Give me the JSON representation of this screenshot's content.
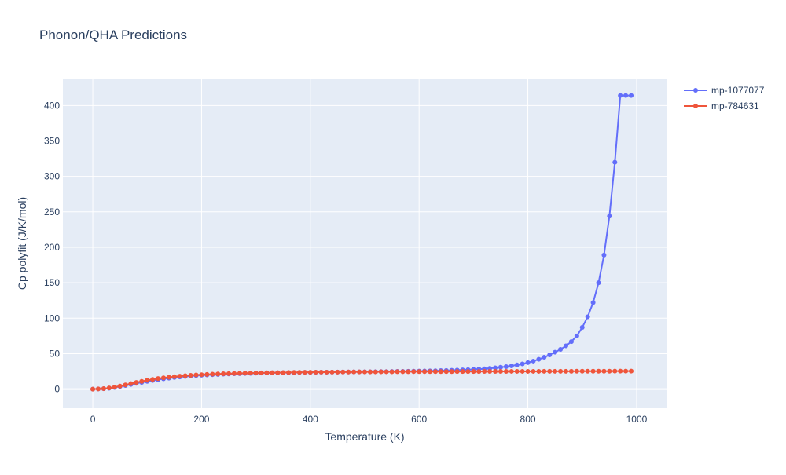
{
  "title": "Phonon/QHA Predictions",
  "colors": {
    "plot_bg": "#e5ecf6",
    "grid": "#ffffff",
    "text": "#2a3f5f",
    "series_1": "#636efa",
    "series_2": "#ef553b"
  },
  "chart_data": {
    "type": "line",
    "title": "Phonon/QHA Predictions",
    "xlabel": "Temperature (K)",
    "ylabel": "Cp polyfit (J/K/mol)",
    "xlim": [
      -55,
      1055
    ],
    "ylim": [
      -27,
      438
    ],
    "xticks": [
      0,
      200,
      400,
      600,
      800,
      1000
    ],
    "xtick_labels": [
      "0",
      "200",
      "400",
      "600",
      "800",
      "1000"
    ],
    "yticks": [
      0,
      50,
      100,
      150,
      200,
      250,
      300,
      350,
      400
    ],
    "ytick_labels": [
      "0",
      "50",
      "100",
      "150",
      "200",
      "250",
      "300",
      "350",
      "400"
    ],
    "grid": true,
    "legend_position": "top-right",
    "x": [
      0,
      10,
      20,
      30,
      40,
      50,
      60,
      70,
      80,
      90,
      100,
      110,
      120,
      130,
      140,
      150,
      160,
      170,
      180,
      190,
      200,
      210,
      220,
      230,
      240,
      250,
      260,
      270,
      280,
      290,
      300,
      310,
      320,
      330,
      340,
      350,
      360,
      370,
      380,
      390,
      400,
      410,
      420,
      430,
      440,
      450,
      460,
      470,
      480,
      490,
      500,
      510,
      520,
      530,
      540,
      550,
      560,
      570,
      580,
      590,
      600,
      610,
      620,
      630,
      640,
      650,
      660,
      670,
      680,
      690,
      700,
      710,
      720,
      730,
      740,
      750,
      760,
      770,
      780,
      790,
      800,
      810,
      820,
      830,
      840,
      850,
      860,
      870,
      880,
      890,
      900,
      910,
      920,
      930,
      940,
      950,
      960,
      970,
      980,
      990
    ],
    "series": [
      {
        "name": "mp-1077077",
        "values": [
          0,
          0.2,
          0.6,
          1.3,
          2.4,
          3.7,
          5.1,
          6.6,
          8.1,
          9.5,
          10.9,
          12.2,
          13.4,
          14.5,
          15.5,
          16.4,
          17.2,
          17.9,
          18.5,
          19.1,
          19.6,
          20.0,
          20.4,
          20.8,
          21.1,
          21.4,
          21.7,
          21.9,
          22.1,
          22.3,
          22.5,
          22.7,
          22.8,
          23.0,
          23.1,
          23.2,
          23.3,
          23.4,
          23.5,
          23.6,
          23.7,
          23.8,
          23.9,
          23.9,
          24.0,
          24.1,
          24.2,
          24.2,
          24.3,
          24.4,
          24.5,
          24.5,
          24.6,
          24.7,
          24.8,
          24.9,
          25.0,
          25.1,
          25.2,
          25.3,
          25.4,
          25.6,
          25.7,
          25.9,
          26.1,
          26.3,
          26.5,
          26.8,
          27.1,
          27.4,
          27.8,
          28.2,
          28.7,
          29.3,
          30.0,
          30.8,
          31.7,
          32.8,
          34.1,
          35.6,
          37.4,
          39.5,
          42.0,
          44.9,
          48.3,
          52.0,
          56.0,
          61.0,
          67.0,
          75.0,
          87.0,
          102.0,
          122.0,
          150.0,
          189.0,
          244.0,
          320.0,
          414.0,
          414.0,
          414.0
        ],
        "color": "#636efa"
      },
      {
        "name": "mp-784631",
        "values": [
          0,
          0.2,
          0.7,
          1.6,
          2.8,
          4.3,
          6.0,
          7.7,
          9.4,
          10.9,
          12.4,
          13.7,
          14.9,
          15.9,
          16.8,
          17.6,
          18.3,
          18.9,
          19.5,
          20.0,
          20.4,
          20.8,
          21.1,
          21.4,
          21.7,
          21.9,
          22.1,
          22.3,
          22.5,
          22.7,
          22.8,
          23.0,
          23.1,
          23.2,
          23.3,
          23.4,
          23.5,
          23.6,
          23.7,
          23.8,
          23.8,
          23.9,
          24.0,
          24.0,
          24.1,
          24.1,
          24.2,
          24.2,
          24.3,
          24.3,
          24.4,
          24.4,
          24.4,
          24.5,
          24.5,
          24.5,
          24.6,
          24.6,
          24.6,
          24.7,
          24.7,
          24.7,
          24.7,
          24.8,
          24.8,
          24.8,
          24.8,
          24.9,
          24.9,
          24.9,
          24.9,
          24.9,
          25.0,
          25.0,
          25.0,
          25.0,
          25.0,
          25.1,
          25.1,
          25.1,
          25.1,
          25.1,
          25.1,
          25.2,
          25.2,
          25.2,
          25.2,
          25.2,
          25.2,
          25.3,
          25.3,
          25.3,
          25.3,
          25.3,
          25.3,
          25.3,
          25.4,
          25.4,
          25.4,
          25.4
        ],
        "color": "#ef553b"
      }
    ]
  }
}
